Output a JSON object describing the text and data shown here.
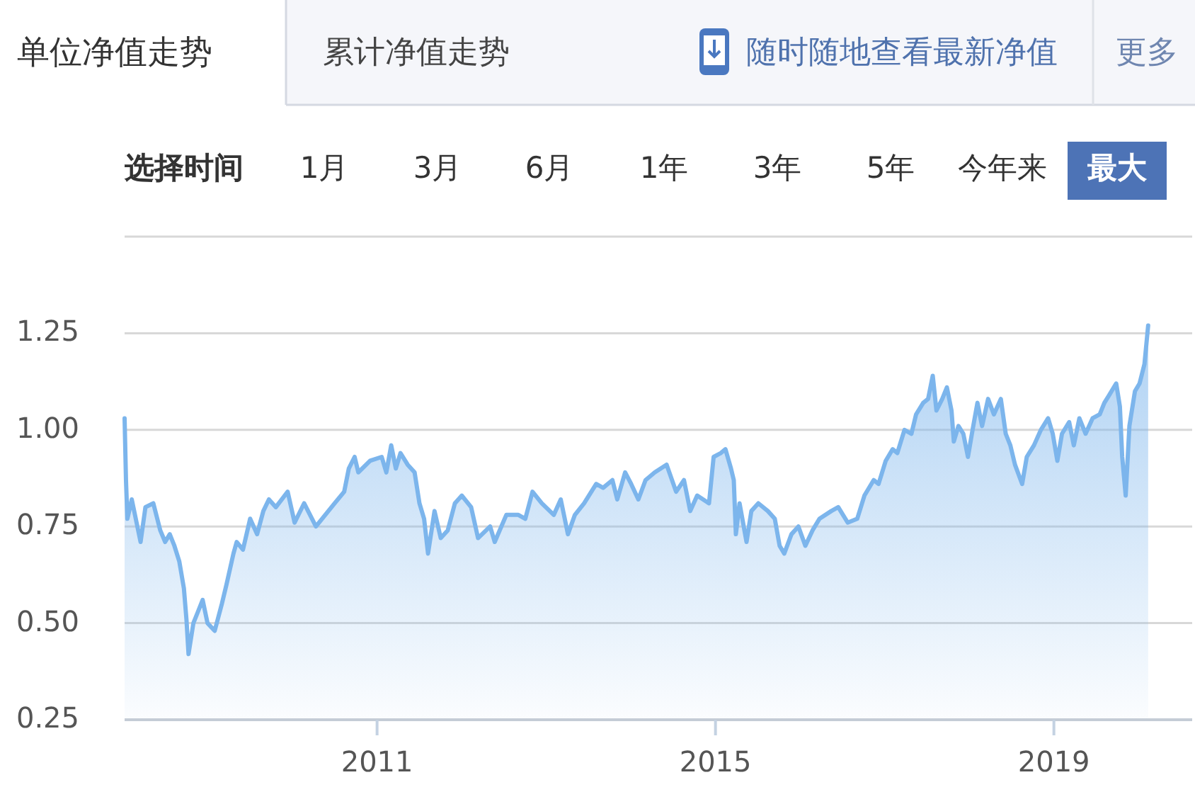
{
  "chart_data": {
    "type": "area",
    "title": "单位净值走势",
    "annotations": [
      "累计净值走势",
      "随时随地查看最新净值",
      "更多",
      "选择时间",
      "1月",
      "3月",
      "6月",
      "1年",
      "3年",
      "5年",
      "今年来",
      "最大"
    ],
    "x": [
      "2008-01-07",
      "2008-01-13",
      "2008-01-19",
      "2008-02-07",
      "2008-03-16",
      "2008-04-06",
      "2008-05-10",
      "2008-06-09",
      "2008-06-30",
      "2008-07-20",
      "2008-08-09",
      "2008-08-30",
      "2008-09-19",
      "2008-09-30",
      "2008-10-09",
      "2008-10-30",
      "2008-11-19",
      "2008-12-09",
      "2008-12-30",
      "2009-01-30",
      "2009-03-02",
      "2009-03-22",
      "2009-04-21",
      "2009-05-05",
      "2009-06-01",
      "2009-07-02",
      "2009-08-01",
      "2009-08-28",
      "2009-09-21",
      "2009-10-21",
      "2009-12-11",
      "2010-01-10",
      "2010-02-20",
      "2010-04-12",
      "2010-07-02",
      "2010-08-12",
      "2010-09-01",
      "2010-09-26",
      "2010-10-12",
      "2010-12-02",
      "2011-01-21",
      "2011-02-10",
      "2011-03-03",
      "2011-03-23",
      "2011-04-12",
      "2011-05-13",
      "2011-06-12",
      "2011-07-03",
      "2011-07-23",
      "2011-08-09",
      "2011-09-06",
      "2011-10-03",
      "2011-11-02",
      "2011-12-03",
      "2012-01-02",
      "2012-02-11",
      "2012-03-12",
      "2012-05-03",
      "2012-05-23",
      "2012-07-12",
      "2012-09-02",
      "2012-10-02",
      "2012-11-02",
      "2012-12-12",
      "2013-02-02",
      "2013-03-04",
      "2013-04-04",
      "2013-05-04",
      "2013-06-13",
      "2013-08-04",
      "2013-09-03",
      "2013-10-13",
      "2013-11-03",
      "2013-12-07",
      "2014-01-02",
      "2014-02-02",
      "2014-03-05",
      "2014-04-14",
      "2014-06-04",
      "2014-07-15",
      "2014-08-18",
      "2014-09-14",
      "2014-10-14",
      "2014-12-04",
      "2014-12-24",
      "2015-01-24",
      "2015-02-13",
      "2015-03-09",
      "2015-03-21",
      "2015-03-30",
      "2015-04-15",
      "2015-05-15",
      "2015-06-05",
      "2015-07-05",
      "2015-08-15",
      "2015-09-14",
      "2015-10-05",
      "2015-10-25",
      "2015-11-25",
      "2015-12-25",
      "2016-01-24",
      "2016-02-24",
      "2016-03-25",
      "2016-05-15",
      "2016-06-14",
      "2016-07-25",
      "2016-09-04",
      "2016-10-05",
      "2016-11-14",
      "2016-12-05",
      "2017-01-05",
      "2017-02-04",
      "2017-02-24",
      "2017-03-27",
      "2017-04-26",
      "2017-05-16",
      "2017-06-16",
      "2017-07-07",
      "2017-07-27",
      "2017-08-12",
      "2017-09-06",
      "2017-09-26",
      "2017-10-16",
      "2017-10-26",
      "2017-11-15",
      "2017-12-06",
      "2017-12-26",
      "2018-01-15",
      "2018-02-05",
      "2018-02-25",
      "2018-03-23",
      "2018-04-17",
      "2018-05-17",
      "2018-06-07",
      "2018-06-27",
      "2018-07-17",
      "2018-08-17",
      "2018-09-06",
      "2018-10-07",
      "2018-11-06",
      "2018-12-07",
      "2018-12-27",
      "2019-01-16",
      "2019-02-05",
      "2019-03-08",
      "2019-03-28",
      "2019-04-21",
      "2019-05-18",
      "2019-06-17",
      "2019-07-18",
      "2019-08-07",
      "2019-08-28",
      "2019-09-27",
      "2019-10-13",
      "2019-10-23",
      "2019-11-07",
      "2019-11-23",
      "2019-12-17",
      "2020-01-06",
      "2020-01-27",
      "2020-02-12"
    ],
    "series": [
      {
        "color": "#7cb5ec",
        "values": [
          1.03,
          0.87,
          0.77,
          0.82,
          0.71,
          0.8,
          0.81,
          0.74,
          0.71,
          0.73,
          0.7,
          0.66,
          0.59,
          0.51,
          0.42,
          0.5,
          0.53,
          0.56,
          0.5,
          0.48,
          0.55,
          0.6,
          0.68,
          0.71,
          0.69,
          0.77,
          0.73,
          0.79,
          0.82,
          0.8,
          0.84,
          0.76,
          0.81,
          0.75,
          0.81,
          0.84,
          0.9,
          0.93,
          0.89,
          0.92,
          0.93,
          0.89,
          0.96,
          0.9,
          0.94,
          0.91,
          0.89,
          0.81,
          0.77,
          0.68,
          0.79,
          0.72,
          0.74,
          0.81,
          0.83,
          0.8,
          0.72,
          0.75,
          0.71,
          0.78,
          0.78,
          0.77,
          0.84,
          0.81,
          0.78,
          0.82,
          0.73,
          0.78,
          0.81,
          0.86,
          0.85,
          0.87,
          0.82,
          0.89,
          0.86,
          0.82,
          0.87,
          0.89,
          0.91,
          0.84,
          0.87,
          0.79,
          0.83,
          0.81,
          0.93,
          0.94,
          0.95,
          0.9,
          0.87,
          0.73,
          0.81,
          0.71,
          0.79,
          0.81,
          0.79,
          0.77,
          0.7,
          0.68,
          0.73,
          0.75,
          0.7,
          0.74,
          0.77,
          0.79,
          0.8,
          0.76,
          0.77,
          0.83,
          0.87,
          0.86,
          0.92,
          0.95,
          0.94,
          1.0,
          0.99,
          1.04,
          1.07,
          1.08,
          1.14,
          1.05,
          1.08,
          1.11,
          1.05,
          0.97,
          1.01,
          0.99,
          0.93,
          1.0,
          1.07,
          1.01,
          1.08,
          1.04,
          1.08,
          0.99,
          0.96,
          0.91,
          0.86,
          0.93,
          0.96,
          1.0,
          1.03,
          0.99,
          0.92,
          0.99,
          1.02,
          0.96,
          1.03,
          0.99,
          1.03,
          1.04,
          1.07,
          1.09,
          1.12,
          1.06,
          0.93,
          0.83,
          1.01,
          1.1,
          1.12,
          1.17,
          1.27
        ]
      }
    ],
    "xlim": [
      "2008-01-07",
      "2020-08-20"
    ],
    "xticks": [
      {
        "value": "2011-01-01",
        "label": "2011"
      },
      {
        "value": "2015-01-01",
        "label": "2015"
      },
      {
        "value": "2019-01-01",
        "label": "2019"
      }
    ],
    "ylim": [
      0.25,
      1.5
    ],
    "yticks": [
      0.25,
      {
        "value": 0.5,
        "label": "0.50"
      },
      0.75,
      {
        "value": 1,
        "label": "1.00"
      },
      1.25,
      {
        "value": 1.5,
        "label": null
      }
    ],
    "grid": "y"
  }
}
